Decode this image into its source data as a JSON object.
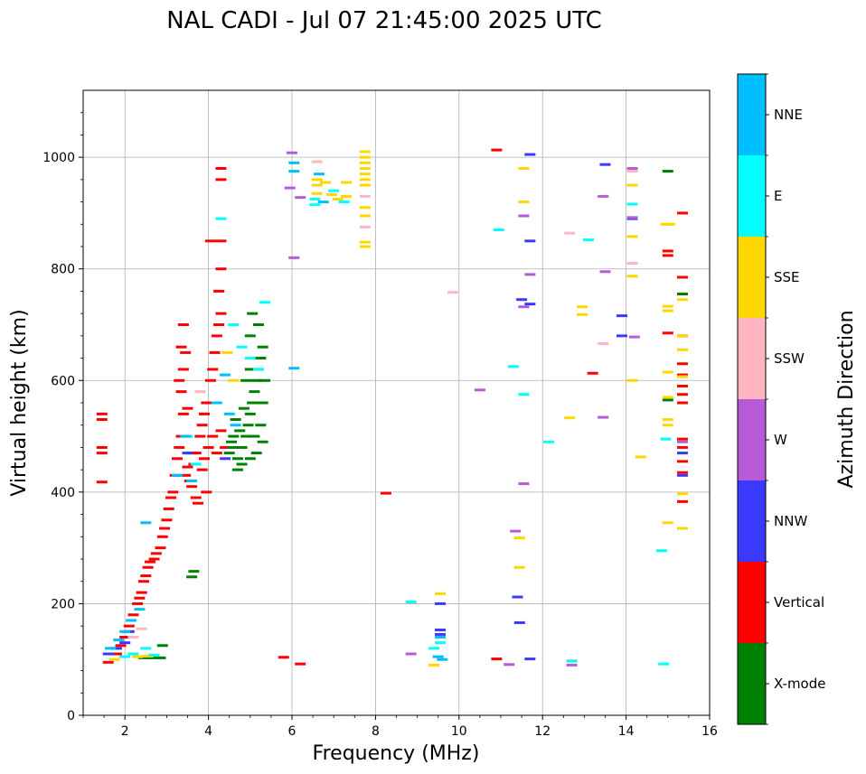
{
  "chart_data": {
    "type": "scatter",
    "title": "NAL CADI - Jul 07 21:45:00 2025 UTC",
    "xlabel": "Frequency (MHz)",
    "ylabel": "Virtual height (km)",
    "xlim": [
      1,
      16
    ],
    "ylim": [
      0,
      1120
    ],
    "xticks": [
      2,
      4,
      6,
      8,
      10,
      12,
      14,
      16
    ],
    "yticks": [
      0,
      200,
      400,
      600,
      800,
      1000
    ],
    "xtick_labels": [
      "2",
      "4",
      "6",
      "8",
      "10",
      "12",
      "14",
      "16"
    ],
    "ytick_labels": [
      "0",
      "200",
      "400",
      "600",
      "800",
      "1000"
    ],
    "grid": true,
    "colorbar": {
      "label": "Azimuth Direction",
      "categories": [
        {
          "name": "X-mode",
          "color": "#008000"
        },
        {
          "name": "Vertical",
          "color": "#ff0000"
        },
        {
          "name": "NNW",
          "color": "#3a3aff"
        },
        {
          "name": "W",
          "color": "#b65ad6"
        },
        {
          "name": "SSW",
          "color": "#ffb6c1"
        },
        {
          "name": "SSE",
          "color": "#ffd700"
        },
        {
          "name": "E",
          "color": "#00ffff"
        },
        {
          "name": "NNE",
          "color": "#00bfff"
        }
      ]
    },
    "series": [
      {
        "name": "Vertical",
        "color": "#ff0000",
        "points": [
          [
            1.45,
            540
          ],
          [
            1.45,
            530
          ],
          [
            1.45,
            480
          ],
          [
            1.45,
            470
          ],
          [
            1.45,
            418
          ],
          [
            1.6,
            95
          ],
          [
            1.8,
            110
          ],
          [
            1.9,
            125
          ],
          [
            2.0,
            140
          ],
          [
            2.1,
            160
          ],
          [
            2.2,
            180
          ],
          [
            2.3,
            200
          ],
          [
            2.35,
            210
          ],
          [
            2.4,
            220
          ],
          [
            2.45,
            240
          ],
          [
            2.5,
            250
          ],
          [
            2.55,
            265
          ],
          [
            2.6,
            275
          ],
          [
            2.7,
            280
          ],
          [
            2.75,
            290
          ],
          [
            2.85,
            300
          ],
          [
            2.9,
            320
          ],
          [
            2.95,
            335
          ],
          [
            3.0,
            350
          ],
          [
            3.05,
            370
          ],
          [
            3.1,
            390
          ],
          [
            3.15,
            400
          ],
          [
            3.2,
            430
          ],
          [
            3.25,
            460
          ],
          [
            3.3,
            480
          ],
          [
            3.35,
            500
          ],
          [
            3.4,
            540
          ],
          [
            3.35,
            580
          ],
          [
            3.4,
            620
          ],
          [
            3.35,
            660
          ],
          [
            3.4,
            700
          ],
          [
            3.45,
            430
          ],
          [
            3.5,
            445
          ],
          [
            3.55,
            420
          ],
          [
            3.6,
            410
          ],
          [
            3.7,
            390
          ],
          [
            3.75,
            380
          ],
          [
            3.65,
            450
          ],
          [
            3.7,
            470
          ],
          [
            3.8,
            500
          ],
          [
            3.85,
            520
          ],
          [
            3.9,
            540
          ],
          [
            3.95,
            560
          ],
          [
            4.0,
            480
          ],
          [
            4.05,
            600
          ],
          [
            4.1,
            620
          ],
          [
            4.15,
            650
          ],
          [
            4.2,
            680
          ],
          [
            4.25,
            700
          ],
          [
            4.3,
            720
          ],
          [
            4.25,
            760
          ],
          [
            4.3,
            800
          ],
          [
            4.05,
            850
          ],
          [
            4.3,
            980
          ],
          [
            4.3,
            960
          ],
          [
            4.3,
            850
          ],
          [
            3.85,
            440
          ],
          [
            3.9,
            460
          ],
          [
            3.95,
            400
          ],
          [
            4.1,
            500
          ],
          [
            4.2,
            470
          ],
          [
            4.3,
            510
          ],
          [
            4.4,
            480
          ],
          [
            3.6,
            470
          ],
          [
            3.3,
            600
          ],
          [
            3.45,
            650
          ],
          [
            3.5,
            550
          ],
          [
            8.25,
            398
          ],
          [
            10.9,
            1013
          ],
          [
            10.9,
            101
          ],
          [
            6.2,
            92
          ],
          [
            5.8,
            104
          ],
          [
            15.0,
            832
          ],
          [
            15.0,
            824
          ],
          [
            15.0,
            685
          ],
          [
            15.35,
            900
          ],
          [
            15.35,
            785
          ],
          [
            15.35,
            680
          ],
          [
            15.35,
            630
          ],
          [
            15.35,
            610
          ],
          [
            15.35,
            590
          ],
          [
            15.35,
            575
          ],
          [
            15.35,
            560
          ],
          [
            15.35,
            495
          ],
          [
            15.35,
            480
          ],
          [
            15.35,
            455
          ],
          [
            15.35,
            435
          ],
          [
            15.35,
            383
          ],
          [
            13.2,
            613
          ]
        ]
      },
      {
        "name": "X-mode",
        "color": "#008000",
        "points": [
          [
            4.5,
            470
          ],
          [
            4.55,
            490
          ],
          [
            4.6,
            500
          ],
          [
            4.7,
            460
          ],
          [
            4.75,
            510
          ],
          [
            4.8,
            480
          ],
          [
            4.9,
            500
          ],
          [
            4.95,
            520
          ],
          [
            5.0,
            540
          ],
          [
            5.05,
            560
          ],
          [
            5.1,
            580
          ],
          [
            5.15,
            600
          ],
          [
            5.2,
            620
          ],
          [
            5.25,
            640
          ],
          [
            5.3,
            660
          ],
          [
            5.0,
            680
          ],
          [
            5.2,
            700
          ],
          [
            5.05,
            720
          ],
          [
            4.85,
            550
          ],
          [
            4.65,
            530
          ],
          [
            5.1,
            500
          ],
          [
            5.25,
            520
          ],
          [
            4.9,
            600
          ],
          [
            5.0,
            620
          ],
          [
            5.3,
            560
          ],
          [
            5.35,
            600
          ],
          [
            4.6,
            480
          ],
          [
            4.7,
            440
          ],
          [
            4.8,
            450
          ],
          [
            5.0,
            460
          ],
          [
            5.15,
            470
          ],
          [
            5.3,
            490
          ],
          [
            3.65,
            258
          ],
          [
            3.6,
            248
          ],
          [
            2.45,
            103
          ],
          [
            2.7,
            103
          ],
          [
            2.85,
            103
          ],
          [
            2.9,
            125
          ],
          [
            15.0,
            975
          ],
          [
            15.35,
            755
          ],
          [
            15.0,
            565
          ]
        ]
      },
      {
        "name": "NNW",
        "color": "#3a3aff",
        "points": [
          [
            1.6,
            110
          ],
          [
            1.8,
            120
          ],
          [
            2.0,
            130
          ],
          [
            2.1,
            150
          ],
          [
            3.5,
            470
          ],
          [
            4.4,
            460
          ],
          [
            11.7,
            1005
          ],
          [
            11.7,
            850
          ],
          [
            11.7,
            737
          ],
          [
            11.5,
            745
          ],
          [
            11.4,
            212
          ],
          [
            11.45,
            166
          ],
          [
            11.7,
            101
          ],
          [
            9.55,
            200
          ],
          [
            9.55,
            153
          ],
          [
            9.55,
            145
          ],
          [
            13.5,
            987
          ],
          [
            13.9,
            716
          ],
          [
            13.9,
            680
          ],
          [
            14.15,
            890
          ],
          [
            15.35,
            470
          ],
          [
            15.35,
            430
          ]
        ]
      },
      {
        "name": "W",
        "color": "#b65ad6",
        "points": [
          [
            6.0,
            1008
          ],
          [
            5.95,
            945
          ],
          [
            6.2,
            928
          ],
          [
            6.05,
            820
          ],
          [
            8.85,
            110
          ],
          [
            10.5,
            583
          ],
          [
            11.35,
            330
          ],
          [
            11.55,
            415
          ],
          [
            11.55,
            895
          ],
          [
            11.7,
            790
          ],
          [
            11.55,
            732
          ],
          [
            11.2,
            91
          ],
          [
            12.7,
            90
          ],
          [
            13.45,
            930
          ],
          [
            13.5,
            795
          ],
          [
            13.45,
            534
          ],
          [
            14.15,
            980
          ],
          [
            14.15,
            892
          ],
          [
            14.2,
            678
          ],
          [
            15.35,
            490
          ]
        ]
      },
      {
        "name": "SSW",
        "color": "#ffb6c1",
        "points": [
          [
            2.2,
            140
          ],
          [
            2.4,
            155
          ],
          [
            3.8,
            580
          ],
          [
            6.6,
            992
          ],
          [
            7.75,
            930
          ],
          [
            7.75,
            875
          ],
          [
            9.85,
            758
          ],
          [
            12.65,
            864
          ],
          [
            13.45,
            666
          ],
          [
            14.15,
            810
          ],
          [
            14.15,
            975
          ],
          [
            12.7,
            98
          ]
        ]
      },
      {
        "name": "SSE",
        "color": "#ffd700",
        "points": [
          [
            1.75,
            100
          ],
          [
            2.3,
            105
          ],
          [
            2.55,
            106
          ],
          [
            4.45,
            650
          ],
          [
            4.6,
            600
          ],
          [
            6.6,
            960
          ],
          [
            6.6,
            950
          ],
          [
            6.6,
            935
          ],
          [
            6.8,
            955
          ],
          [
            6.95,
            933
          ],
          [
            7.1,
            925
          ],
          [
            7.3,
            955
          ],
          [
            7.3,
            930
          ],
          [
            7.75,
            1010
          ],
          [
            7.75,
            1000
          ],
          [
            7.75,
            990
          ],
          [
            7.75,
            980
          ],
          [
            7.75,
            970
          ],
          [
            7.75,
            960
          ],
          [
            7.75,
            950
          ],
          [
            7.75,
            910
          ],
          [
            7.75,
            895
          ],
          [
            7.75,
            848
          ],
          [
            7.75,
            840
          ],
          [
            9.4,
            90
          ],
          [
            9.55,
            218
          ],
          [
            11.55,
            980
          ],
          [
            11.55,
            920
          ],
          [
            11.45,
            318
          ],
          [
            11.45,
            265
          ],
          [
            12.65,
            533
          ],
          [
            12.95,
            732
          ],
          [
            12.95,
            718
          ],
          [
            14.15,
            950
          ],
          [
            14.15,
            858
          ],
          [
            14.15,
            787
          ],
          [
            14.15,
            600
          ],
          [
            14.35,
            463
          ],
          [
            14.95,
            880
          ],
          [
            15.05,
            880
          ],
          [
            15.0,
            733
          ],
          [
            15.0,
            725
          ],
          [
            15.0,
            615
          ],
          [
            15.0,
            530
          ],
          [
            15.0,
            520
          ],
          [
            15.0,
            345
          ],
          [
            15.35,
            745
          ],
          [
            15.35,
            680
          ],
          [
            15.35,
            655
          ],
          [
            15.35,
            607
          ],
          [
            15.35,
            397
          ],
          [
            15.35,
            335
          ],
          [
            15.0,
            570
          ]
        ]
      },
      {
        "name": "E",
        "color": "#00ffff",
        "points": [
          [
            2.0,
            105
          ],
          [
            2.2,
            110
          ],
          [
            2.5,
            120
          ],
          [
            2.7,
            108
          ],
          [
            3.5,
            500
          ],
          [
            3.7,
            450
          ],
          [
            4.3,
            890
          ],
          [
            4.6,
            700
          ],
          [
            4.8,
            660
          ],
          [
            5.0,
            640
          ],
          [
            5.2,
            620
          ],
          [
            5.35,
            740
          ],
          [
            6.55,
            925
          ],
          [
            6.55,
            915
          ],
          [
            7.0,
            940
          ],
          [
            7.25,
            920
          ],
          [
            8.85,
            203
          ],
          [
            9.4,
            120
          ],
          [
            9.55,
            130
          ],
          [
            10.95,
            870
          ],
          [
            11.3,
            625
          ],
          [
            11.55,
            575
          ],
          [
            12.15,
            490
          ],
          [
            13.1,
            852
          ],
          [
            14.15,
            916
          ],
          [
            14.85,
            295
          ],
          [
            14.95,
            495
          ],
          [
            14.9,
            92
          ],
          [
            12.7,
            97
          ]
        ]
      },
      {
        "name": "NNE",
        "color": "#00bfff",
        "points": [
          [
            1.65,
            120
          ],
          [
            1.85,
            135
          ],
          [
            2.0,
            150
          ],
          [
            2.15,
            170
          ],
          [
            2.35,
            190
          ],
          [
            2.5,
            345
          ],
          [
            3.25,
            430
          ],
          [
            3.45,
            500
          ],
          [
            3.6,
            420
          ],
          [
            4.2,
            560
          ],
          [
            4.4,
            610
          ],
          [
            4.5,
            540
          ],
          [
            4.65,
            520
          ],
          [
            6.05,
            990
          ],
          [
            6.05,
            975
          ],
          [
            6.05,
            622
          ],
          [
            6.65,
            970
          ],
          [
            6.75,
            920
          ],
          [
            9.5,
            105
          ],
          [
            9.6,
            100
          ],
          [
            9.55,
            140
          ]
        ]
      }
    ]
  }
}
